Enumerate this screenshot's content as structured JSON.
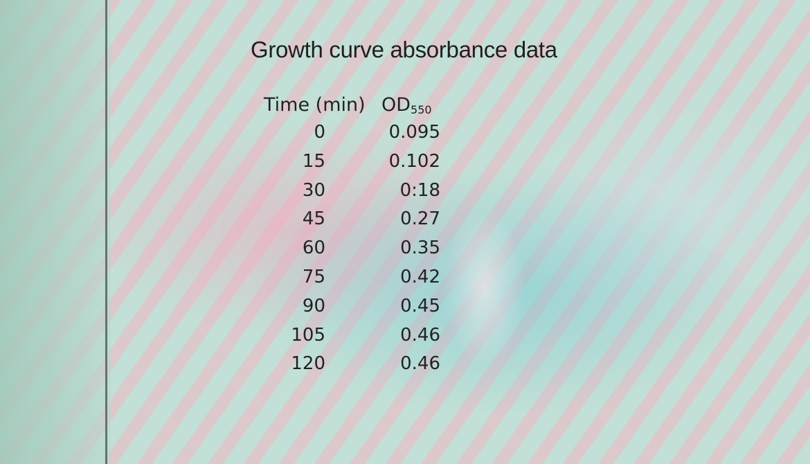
{
  "title": "Growth curve absorbance data",
  "table": {
    "headers": {
      "time": "Time (min)",
      "od": "OD",
      "od_subscript": "550"
    },
    "rows": [
      {
        "time": "0",
        "od": "0.095"
      },
      {
        "time": "15",
        "od": "0.102"
      },
      {
        "time": "30",
        "od": "0:18"
      },
      {
        "time": "45",
        "od": "0.27"
      },
      {
        "time": "60",
        "od": "0.35"
      },
      {
        "time": "75",
        "od": "0.42"
      },
      {
        "time": "90",
        "od": "0.45"
      },
      {
        "time": "105",
        "od": "0.46"
      },
      {
        "time": "120",
        "od": "0.46"
      }
    ]
  }
}
